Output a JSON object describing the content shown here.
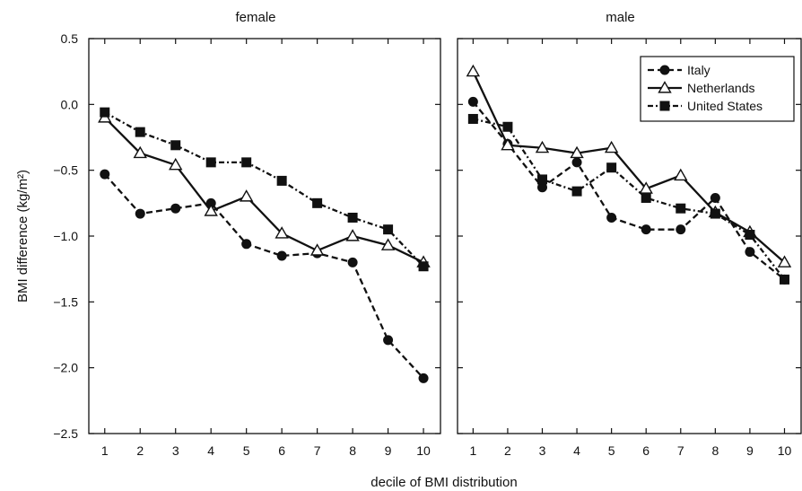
{
  "chart_data": {
    "type": "line",
    "xlabel": "decile of BMI distribution",
    "ylabel": "BMI difference (kg/m²)",
    "ylim": [
      -2.5,
      0.5
    ],
    "yticks": [
      0.5,
      0.0,
      -0.5,
      -1.0,
      -1.5,
      -2.0,
      -2.5
    ],
    "ytick_labels": [
      "0.5",
      "0.0",
      "−0.5",
      "−1.0",
      "−1.5",
      "−2.0",
      "−2.5"
    ],
    "x": [
      1,
      2,
      3,
      4,
      5,
      6,
      7,
      8,
      9,
      10
    ],
    "grid": false,
    "legend_position": "top-right",
    "panels": [
      {
        "title": "female",
        "series": [
          {
            "name": "Italy",
            "style": "dashed",
            "marker": "filled-circle",
            "values": [
              -0.53,
              -0.83,
              -0.79,
              -0.75,
              -1.06,
              -1.15,
              -1.13,
              -1.2,
              -1.79,
              -2.08
            ]
          },
          {
            "name": "Netherlands",
            "style": "solid",
            "marker": "open-triangle",
            "values": [
              -0.1,
              -0.37,
              -0.46,
              -0.81,
              -0.7,
              -0.98,
              -1.11,
              -1.0,
              -1.07,
              -1.2
            ]
          },
          {
            "name": "United States",
            "style": "dash-dot",
            "marker": "filled-square",
            "values": [
              -0.06,
              -0.21,
              -0.31,
              -0.44,
              -0.44,
              -0.58,
              -0.75,
              -0.86,
              -0.95,
              -1.23
            ]
          }
        ]
      },
      {
        "title": "male",
        "series": [
          {
            "name": "Italy",
            "style": "dashed",
            "marker": "filled-circle",
            "values": [
              0.02,
              -0.3,
              -0.63,
              -0.44,
              -0.86,
              -0.95,
              -0.95,
              -0.71,
              -1.12,
              -1.33
            ]
          },
          {
            "name": "Netherlands",
            "style": "solid",
            "marker": "open-triangle",
            "values": [
              0.25,
              -0.31,
              -0.33,
              -0.37,
              -0.33,
              -0.64,
              -0.54,
              -0.82,
              -0.97,
              -1.2
            ]
          },
          {
            "name": "United States",
            "style": "dash-dot",
            "marker": "filled-square",
            "values": [
              -0.11,
              -0.17,
              -0.57,
              -0.66,
              -0.48,
              -0.71,
              -0.79,
              -0.83,
              -0.99,
              -1.33
            ]
          }
        ]
      }
    ],
    "legend": [
      {
        "name": "Italy",
        "style": "dashed",
        "marker": "filled-circle"
      },
      {
        "name": "Netherlands",
        "style": "solid",
        "marker": "open-triangle"
      },
      {
        "name": "United States",
        "style": "dash-dot",
        "marker": "filled-square"
      }
    ]
  }
}
